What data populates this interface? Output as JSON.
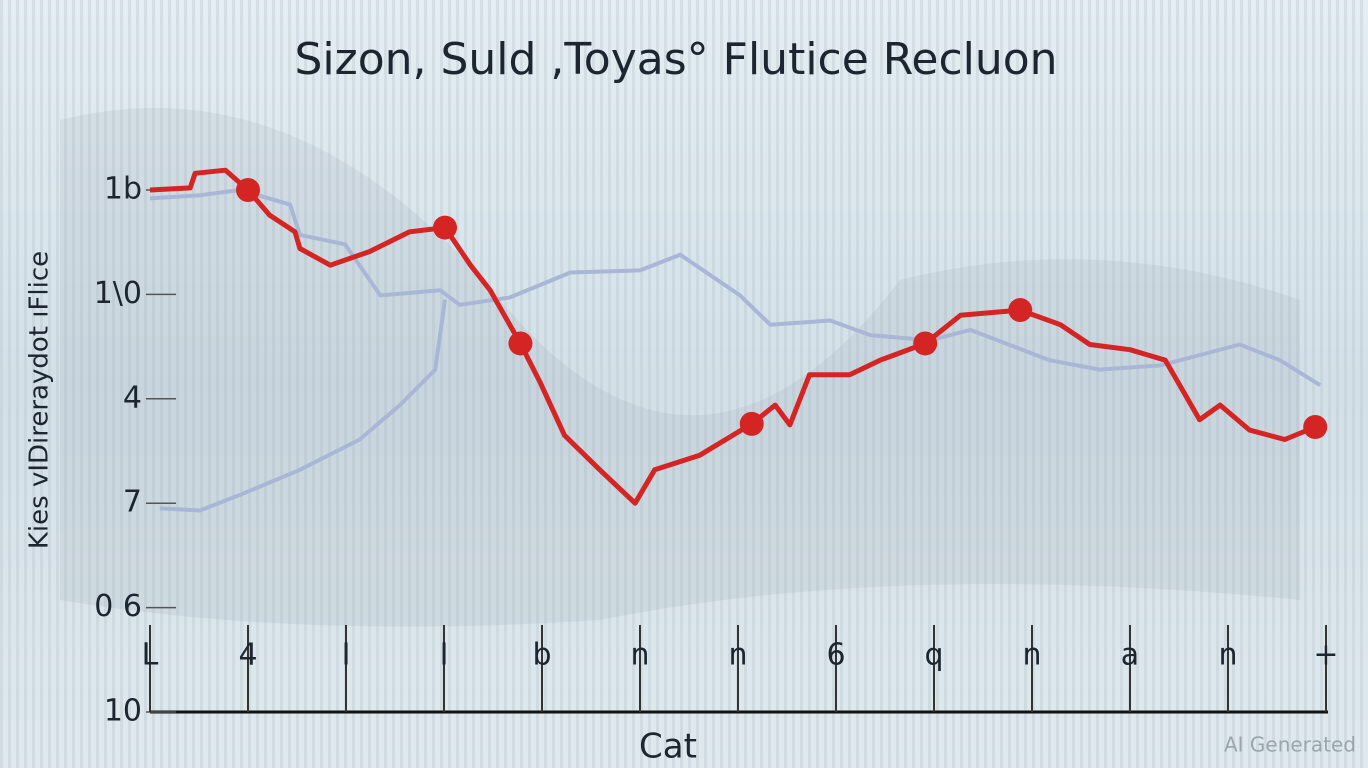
{
  "chart_data": {
    "type": "line",
    "title": "Sizon, Suld ,Toyas° Flutice Recluon",
    "x_label": "Cat",
    "y_label": "Kies vIDireraydot ıFlice",
    "watermark": "AI Generated",
    "xlim": [
      0,
      12
    ],
    "xticks": [
      {
        "value": 0,
        "label": "L"
      },
      {
        "value": 1,
        "label": "4"
      },
      {
        "value": 2,
        "label": "I"
      },
      {
        "value": 3,
        "label": "I"
      },
      {
        "value": 4,
        "label": "b"
      },
      {
        "value": 5,
        "label": "n"
      },
      {
        "value": 6,
        "label": "n"
      },
      {
        "value": 7,
        "label": "6"
      },
      {
        "value": 8,
        "label": "q"
      },
      {
        "value": 9,
        "label": "n"
      },
      {
        "value": 10,
        "label": "a"
      },
      {
        "value": 11,
        "label": "n"
      },
      {
        "value": 12,
        "label": "+"
      }
    ],
    "ylim": [
      0,
      5
    ],
    "yticks": [
      {
        "value": 0,
        "label": "10"
      },
      {
        "value": 1,
        "label": "0 6"
      },
      {
        "value": 2,
        "label": "7"
      },
      {
        "value": 3,
        "label": "4"
      },
      {
        "value": 4,
        "label": "1\\0"
      },
      {
        "value": 5,
        "label": "1b"
      }
    ],
    "series": [
      {
        "color": "#a9b6d6",
        "style": "line",
        "x": [
          0,
          0.51,
          0.92,
          1.43,
          1.53,
          1.99,
          2.35,
          2.96,
          3.16,
          3.67,
          4.29,
          5.0,
          5.41,
          6.02,
          6.33,
          6.94,
          7.35,
          7.96,
          8.37,
          9.18,
          9.69,
          10.31,
          11.12,
          11.53,
          11.94
        ],
        "values": [
          4.92,
          4.95,
          5.0,
          4.86,
          4.57,
          4.48,
          3.99,
          4.04,
          3.9,
          3.97,
          4.21,
          4.23,
          4.38,
          3.99,
          3.71,
          3.75,
          3.61,
          3.56,
          3.66,
          3.37,
          3.28,
          3.32,
          3.52,
          3.37,
          3.13
        ]
      },
      {
        "color": "#a9b6d6",
        "style": "line",
        "x": [
          0.1,
          0.51,
          0.92,
          1.53,
          2.14,
          2.55,
          2.91,
          3.01
        ],
        "values": [
          1.95,
          1.93,
          2.08,
          2.32,
          2.61,
          2.94,
          3.28,
          3.95
        ]
      },
      {
        "color": "#d42424",
        "style": "line",
        "x": [
          0,
          0.41,
          0.46,
          0.77,
          1.0,
          1.22,
          1.48,
          1.53,
          1.84,
          2.24,
          2.65,
          3.01,
          3.27,
          3.47,
          3.78,
          3.98,
          4.23,
          4.59,
          4.95,
          5.15,
          5.61,
          6.14,
          6.38,
          6.53,
          6.73,
          7.14,
          7.45,
          7.91,
          8.27,
          8.88,
          9.29,
          9.59,
          10.0,
          10.36,
          10.71,
          10.92,
          11.22,
          11.58,
          11.89
        ],
        "values": [
          5.0,
          5.02,
          5.16,
          5.19,
          5.0,
          4.76,
          4.6,
          4.44,
          4.28,
          4.41,
          4.6,
          4.64,
          4.28,
          4.04,
          3.53,
          3.16,
          2.65,
          2.32,
          2.0,
          2.32,
          2.46,
          2.76,
          2.94,
          2.75,
          3.23,
          3.23,
          3.37,
          3.53,
          3.8,
          3.85,
          3.71,
          3.52,
          3.47,
          3.37,
          2.8,
          2.94,
          2.7,
          2.61,
          2.73
        ]
      },
      {
        "color": "#d42424",
        "style": "markers",
        "x": [
          1.0,
          3.01,
          3.78,
          6.14,
          7.91,
          8.88,
          11.89
        ],
        "values": [
          5.0,
          4.64,
          3.53,
          2.76,
          3.53,
          3.85,
          2.73
        ]
      }
    ]
  }
}
